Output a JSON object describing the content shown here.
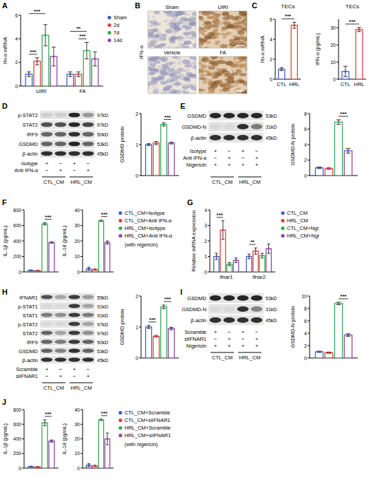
{
  "chart_data": [
    {
      "type": "bar",
      "panel": "A",
      "y_label": "Ifn-α mRNA",
      "categories": [
        "UIRI",
        "FA"
      ],
      "series": [
        {
          "name": "Sham",
          "color": "#3d5fc4",
          "values": [
            1.0,
            1.0
          ],
          "errors": [
            0.2,
            0.2
          ]
        },
        {
          "name": "2d",
          "color": "#e0403c",
          "values": [
            2.1,
            1.0
          ],
          "errors": [
            0.3,
            0.2
          ]
        },
        {
          "name": "7d",
          "color": "#34a853",
          "values": [
            4.3,
            3.0
          ],
          "errors": [
            0.9,
            0.7
          ]
        },
        {
          "name": "14d",
          "color": "#8e44ad",
          "values": [
            2.5,
            2.3
          ],
          "errors": [
            0.8,
            0.6
          ]
        }
      ],
      "ylim": [
        0,
        6
      ],
      "yticks": [
        0,
        2,
        4,
        6
      ],
      "legend": "right",
      "annotations": [
        {
          "text": "***",
          "category": 0,
          "from": 0,
          "to": 2
        },
        {
          "text": "***",
          "category": 0,
          "from": 0,
          "to": 1
        },
        {
          "text": "**",
          "category": 1,
          "from": 0,
          "to": 2
        },
        {
          "text": "***",
          "category": 1,
          "from": 1,
          "to": 2
        }
      ]
    },
    {
      "type": "bar",
      "panel": "C",
      "title": "TECs",
      "y_label": "Ifn-α mRNA",
      "categories": [
        "CTL",
        "HRL"
      ],
      "values": [
        1.0,
        5.4
      ],
      "errors": [
        0.15,
        0.3
      ],
      "colors": [
        "#3d5fc4",
        "#e0403c"
      ],
      "ylim": [
        0,
        6
      ],
      "yticks": [
        0,
        2,
        4,
        6
      ],
      "annotations": [
        {
          "text": "***",
          "from": 0,
          "to": 1
        }
      ]
    },
    {
      "type": "bar",
      "title": "TECs",
      "y_label": "IFN-α (pg/mL)",
      "categories": [
        "CTL",
        "HRL"
      ],
      "values": [
        4.5,
        29
      ],
      "errors": [
        3,
        1.2
      ],
      "colors": [
        "#3d5fc4",
        "#e0403c"
      ],
      "ylim": [
        0,
        35
      ],
      "yticks": [
        0,
        10,
        20,
        30
      ],
      "annotations": [
        {
          "text": "***",
          "from": 0,
          "to": 1
        }
      ]
    },
    {
      "type": "bar",
      "y_label": "GSDMD protein",
      "categories": [
        null
      ],
      "series": [
        {
          "color": "#3d5fc4",
          "values": [
            1.0
          ],
          "errors": [
            0.03
          ]
        },
        {
          "color": "#e0403c",
          "values": [
            1.05
          ],
          "errors": [
            0.05
          ]
        },
        {
          "color": "#34a853",
          "values": [
            1.65
          ],
          "errors": [
            0.05
          ]
        },
        {
          "color": "#8e44ad",
          "values": [
            1.05
          ],
          "errors": [
            0.03
          ]
        }
      ],
      "ylim": [
        0,
        2
      ],
      "yticks": [
        0,
        1,
        2
      ],
      "annotations": [
        {
          "text": "***",
          "category": 0,
          "from": 2,
          "to": 3
        }
      ]
    },
    {
      "type": "bar",
      "y_label": "GSDMD-N protein",
      "categories": [
        null
      ],
      "series": [
        {
          "color": "#3d5fc4",
          "values": [
            1.0
          ],
          "errors": [
            0.1
          ]
        },
        {
          "color": "#e0403c",
          "values": [
            0.9
          ],
          "errors": [
            0.1
          ]
        },
        {
          "color": "#34a853",
          "values": [
            6.9
          ],
          "errors": [
            0.3
          ]
        },
        {
          "color": "#8e44ad",
          "values": [
            3.2
          ],
          "errors": [
            0.3
          ]
        }
      ],
      "ylim": [
        0,
        8
      ],
      "yticks": [
        0,
        2,
        4,
        6,
        8
      ],
      "annotations": [
        {
          "text": "***",
          "category": 0,
          "from": 2,
          "to": 3
        }
      ]
    },
    {
      "type": "bar",
      "panel": "F",
      "y_label": "IL-1β (pg/mL)",
      "categories": [
        null
      ],
      "series": [
        {
          "color": "#3d5fc4",
          "values": [
            20
          ],
          "errors": [
            5
          ]
        },
        {
          "color": "#e0403c",
          "values": [
            15
          ],
          "errors": [
            5
          ]
        },
        {
          "color": "#34a853",
          "values": [
            620
          ],
          "errors": [
            15
          ]
        },
        {
          "color": "#8e44ad",
          "values": [
            380
          ],
          "errors": [
            10
          ]
        }
      ],
      "ylim": [
        0,
        800
      ],
      "yticks": [
        0,
        200,
        400,
        600,
        800
      ],
      "annotations": [
        {
          "text": "***",
          "category": 0,
          "from": 2,
          "to": 3
        }
      ]
    },
    {
      "type": "bar",
      "y_label": "IL-18 (pg/mL)",
      "categories": [
        null
      ],
      "series": [
        {
          "name": "CTL_CM+Isotype",
          "color": "#3d5fc4",
          "values": [
            2
          ],
          "errors": [
            1
          ]
        },
        {
          "name": "CTL_CM+Anti IFN-α",
          "color": "#e0403c",
          "values": [
            1.5
          ],
          "errors": [
            0.5
          ]
        },
        {
          "name": "HRL_CM+Isotype",
          "color": "#34a853",
          "values": [
            33
          ],
          "errors": [
            0.5
          ]
        },
        {
          "name": "HRL_CM+Anti IFN-α",
          "color": "#8e44ad",
          "values": [
            19
          ],
          "errors": [
            1
          ]
        }
      ],
      "ylim": [
        0,
        40
      ],
      "yticks": [
        0,
        10,
        20,
        30,
        40
      ],
      "legend": "right",
      "note": "(with nigericin)",
      "annotations": [
        {
          "text": "***",
          "category": 0,
          "from": 2,
          "to": 3
        }
      ]
    },
    {
      "type": "bar",
      "panel": "G",
      "y_label": "Relative mRNA expression",
      "categories": [
        "Ifnar1",
        "Ifnar2"
      ],
      "series": [
        {
          "name": "CTL_CM",
          "color": "#3d5fc4",
          "values": [
            1.0,
            1.0
          ],
          "errors": [
            0.2,
            0.15
          ]
        },
        {
          "name": "HRL_CM",
          "color": "#e0403c",
          "values": [
            2.7,
            1.35
          ],
          "errors": [
            0.6,
            0.2
          ]
        },
        {
          "name": "CTL_CM+Ngr",
          "color": "#34a853",
          "values": [
            0.5,
            1.05
          ],
          "errors": [
            0.1,
            0.15
          ]
        },
        {
          "name": "HRL_CM+Ngr",
          "color": "#8e44ad",
          "values": [
            0.75,
            1.5
          ],
          "errors": [
            0.15,
            0.3
          ]
        }
      ],
      "ylim": [
        0,
        4
      ],
      "yticks": [
        0,
        1,
        2,
        3,
        4
      ],
      "legend": "right",
      "annotations": [
        {
          "text": "***",
          "category": 0,
          "from": 0,
          "to": 1
        },
        {
          "text": "**",
          "category": 1,
          "from": 0,
          "to": 1
        }
      ]
    },
    {
      "type": "bar",
      "y_label": "GSDMD protein",
      "categories": [
        null
      ],
      "series": [
        {
          "color": "#3d5fc4",
          "values": [
            1.0
          ],
          "errors": [
            0.05
          ]
        },
        {
          "color": "#e0403c",
          "values": [
            0.7
          ],
          "errors": [
            0.03
          ]
        },
        {
          "color": "#34a853",
          "values": [
            1.65
          ],
          "errors": [
            0.06
          ]
        },
        {
          "color": "#8e44ad",
          "values": [
            0.95
          ],
          "errors": [
            0.04
          ]
        }
      ],
      "ylim": [
        0,
        2
      ],
      "yticks": [
        0,
        1,
        2
      ],
      "annotations": [
        {
          "text": "***",
          "category": 0,
          "from": 0,
          "to": 1
        },
        {
          "text": "***",
          "category": 0,
          "from": 2,
          "to": 3
        }
      ]
    },
    {
      "type": "bar",
      "y_label": "GSDMD-N protein",
      "categories": [
        null
      ],
      "series": [
        {
          "color": "#3d5fc4",
          "values": [
            1.0
          ],
          "errors": [
            0.1
          ]
        },
        {
          "color": "#e0403c",
          "values": [
            0.85
          ],
          "errors": [
            0.1
          ]
        },
        {
          "color": "#34a853",
          "values": [
            8.8
          ],
          "errors": [
            0.2
          ]
        },
        {
          "color": "#8e44ad",
          "values": [
            3.7
          ],
          "errors": [
            0.2
          ]
        }
      ],
      "ylim": [
        0,
        10
      ],
      "yticks": [
        0,
        2,
        4,
        6,
        8,
        10
      ],
      "annotations": [
        {
          "text": "***",
          "category": 0,
          "from": 2,
          "to": 3
        }
      ]
    },
    {
      "type": "bar",
      "panel": "J",
      "y_label": "IL-1β (pg/mL)",
      "categories": [
        null
      ],
      "series": [
        {
          "color": "#3d5fc4",
          "values": [
            20
          ],
          "errors": [
            5
          ]
        },
        {
          "color": "#e0403c",
          "values": [
            15
          ],
          "errors": [
            5
          ]
        },
        {
          "color": "#34a853",
          "values": [
            620
          ],
          "errors": [
            40
          ]
        },
        {
          "color": "#8e44ad",
          "values": [
            370
          ],
          "errors": [
            15
          ]
        }
      ],
      "ylim": [
        0,
        800
      ],
      "yticks": [
        0,
        200,
        400,
        600,
        800
      ],
      "annotations": [
        {
          "text": "***",
          "category": 0,
          "from": 2,
          "to": 3
        }
      ]
    },
    {
      "type": "bar",
      "y_label": "IL-18 (pg/mL)",
      "categories": [
        null
      ],
      "series": [
        {
          "name": "CTL_CM+Scramble",
          "color": "#3d5fc4",
          "values": [
            2
          ],
          "errors": [
            1
          ]
        },
        {
          "name": "CTL_CM+siIFNAR1",
          "color": "#e0403c",
          "values": [
            1.5
          ],
          "errors": [
            0.5
          ]
        },
        {
          "name": "HRL_CM+Scramble",
          "color": "#34a853",
          "values": [
            33
          ],
          "errors": [
            0.5
          ]
        },
        {
          "name": "HRL_CM+siIFNAR1",
          "color": "#8e44ad",
          "values": [
            20
          ],
          "errors": [
            4
          ]
        }
      ],
      "ylim": [
        0,
        40
      ],
      "yticks": [
        0,
        10,
        20,
        30,
        40
      ],
      "legend": "right",
      "note": "(with nigericin)",
      "annotations": [
        {
          "text": "***",
          "category": 0,
          "from": 2,
          "to": 3
        }
      ]
    }
  ],
  "images": {
    "panel": "B",
    "side_label": "IFN-α",
    "tiles": [
      "Sham",
      "UIRI",
      "Vehicle",
      "FA"
    ]
  },
  "blots": [
    {
      "panel": "D",
      "rows": [
        {
          "label": "p-STAT2",
          "kd": "97kD",
          "intensity": [
            0.1,
            0.1,
            0.9,
            0.35
          ]
        },
        {
          "label": "STAT2",
          "kd": "97kD",
          "intensity": [
            0.7,
            0.7,
            0.9,
            0.75
          ]
        },
        {
          "label": "IRF9",
          "kd": "50kD",
          "intensity": [
            0.6,
            0.6,
            0.85,
            0.6
          ]
        },
        {
          "label": "GSDMD",
          "kd": "53kD",
          "intensity": [
            0.6,
            0.6,
            0.9,
            0.6
          ]
        },
        {
          "label": "β-actin",
          "kd": "45kD",
          "intensity": [
            0.85,
            0.85,
            0.85,
            0.85
          ]
        }
      ],
      "conditions": [
        {
          "label": "Isotype",
          "marks": [
            "+",
            "−",
            "+",
            "−"
          ]
        },
        {
          "label": "Anti IFN-α",
          "marks": [
            "−",
            "+",
            "−",
            "+"
          ]
        }
      ],
      "groups": [
        "CTL_CM",
        "HRL_CM"
      ]
    },
    {
      "panel": "E",
      "rows": [
        {
          "label": "GSDMD",
          "kd": "53kD",
          "intensity": [
            0.9,
            0.9,
            0.9,
            0.9
          ]
        },
        {
          "label": "GSDMD-N",
          "kd": "31kD",
          "intensity": [
            0.05,
            0.05,
            0.85,
            0.5
          ]
        },
        {
          "label": "β-actin",
          "kd": "45kD",
          "intensity": [
            0.85,
            0.85,
            0.85,
            0.85
          ]
        }
      ],
      "conditions": [
        {
          "label": "Isotype",
          "marks": [
            "+",
            "−",
            "+",
            "−"
          ]
        },
        {
          "label": "Anti IFN-α",
          "marks": [
            "−",
            "+",
            "−",
            "+"
          ]
        },
        {
          "label": "Nigericin",
          "marks": [
            "+",
            "+",
            "+",
            "+"
          ]
        }
      ],
      "groups": [
        "CTL_CM",
        "HRL_CM"
      ]
    },
    {
      "panel": "H",
      "rows": [
        {
          "label": "IFNAR1",
          "kd": "55kD",
          "intensity": [
            0.7,
            0.3,
            0.8,
            0.35
          ]
        },
        {
          "label": "p-STAT1",
          "kd": "91kD",
          "intensity": [
            0.05,
            0.05,
            0.8,
            0.3
          ]
        },
        {
          "label": "STAT1",
          "kd": "91kD",
          "intensity": [
            0.5,
            0.4,
            0.8,
            0.5
          ]
        },
        {
          "label": "p-STAT2",
          "kd": "97kD",
          "intensity": [
            0.05,
            0.05,
            0.8,
            0.3
          ]
        },
        {
          "label": "STAT2",
          "kd": "97kD",
          "intensity": [
            0.6,
            0.3,
            0.8,
            0.4
          ]
        },
        {
          "label": "IRF9",
          "kd": "50kD",
          "intensity": [
            0.6,
            0.5,
            0.8,
            0.6
          ]
        },
        {
          "label": "GSDMD",
          "kd": "53kD",
          "intensity": [
            0.6,
            0.45,
            0.85,
            0.6
          ]
        },
        {
          "label": "β-actin",
          "kd": "45kD",
          "intensity": [
            0.85,
            0.85,
            0.85,
            0.85
          ]
        }
      ],
      "conditions": [
        {
          "label": "Scramble",
          "marks": [
            "+",
            "−",
            "+",
            "−"
          ]
        },
        {
          "label": "siIFNAR1",
          "marks": [
            "−",
            "+",
            "−",
            "+"
          ]
        }
      ],
      "groups": [
        "CTL_CM",
        "HRL_CM"
      ]
    },
    {
      "panel": "I",
      "rows": [
        {
          "label": "GSDMD",
          "kd": "53kD",
          "intensity": [
            0.9,
            0.9,
            0.9,
            0.9
          ]
        },
        {
          "label": "GSDMD-N",
          "kd": "31kD",
          "intensity": [
            0.05,
            0.05,
            0.85,
            0.45
          ]
        },
        {
          "label": "β-actin",
          "kd": "45kD",
          "intensity": [
            0.85,
            0.85,
            0.85,
            0.85
          ]
        }
      ],
      "conditions": [
        {
          "label": "Scramble",
          "marks": [
            "+",
            "−",
            "+",
            "−"
          ]
        },
        {
          "label": "siIFNAR1",
          "marks": [
            "−",
            "+",
            "−",
            "+"
          ]
        },
        {
          "label": "Nigericin",
          "marks": [
            "+",
            "+",
            "+",
            "+"
          ]
        }
      ],
      "groups": [
        "CTL_CM",
        "HRL_CM"
      ]
    }
  ]
}
